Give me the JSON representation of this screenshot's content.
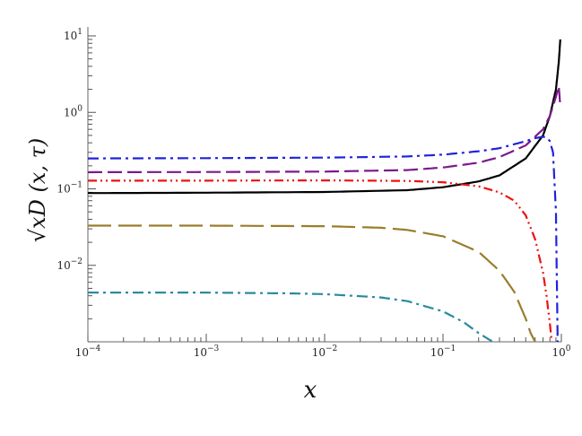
{
  "chart_data": {
    "type": "line",
    "title": "",
    "xlabel": "x",
    "ylabel": "√xD (x, τ)",
    "xscale": "log",
    "yscale": "log",
    "xlim": [
      0.0001,
      1
    ],
    "ylim": [
      0.001,
      10
    ],
    "grid": false,
    "legend": "none",
    "x_ticks": [
      {
        "value": 0.0001,
        "base": "10",
        "exp": "−4"
      },
      {
        "value": 0.001,
        "base": "10",
        "exp": "−3"
      },
      {
        "value": 0.01,
        "base": "10",
        "exp": "−2"
      },
      {
        "value": 0.1,
        "base": "10",
        "exp": "−1"
      },
      {
        "value": 1,
        "base": "10",
        "exp": "0"
      }
    ],
    "y_ticks": [
      {
        "value": 0.01,
        "base": "10",
        "exp": "−2"
      },
      {
        "value": 0.1,
        "base": "10",
        "exp": "−1"
      },
      {
        "value": 1,
        "base": "10",
        "exp": "0"
      },
      {
        "value": 10,
        "base": "10",
        "exp": "1"
      }
    ],
    "series": [
      {
        "color": "#000000",
        "dash": "solid",
        "x": [
          0.0001,
          0.001,
          0.01,
          0.05,
          0.1,
          0.2,
          0.3,
          0.5,
          0.7,
          0.8,
          0.9,
          0.95,
          0.98
        ],
        "y": [
          0.088,
          0.089,
          0.091,
          0.096,
          0.105,
          0.125,
          0.15,
          0.25,
          0.5,
          0.9,
          2.0,
          4.5,
          9.0
        ]
      },
      {
        "color": "#7b1a8a",
        "dash": "long-dash",
        "x": [
          0.0001,
          0.001,
          0.01,
          0.05,
          0.1,
          0.2,
          0.3,
          0.5,
          0.7,
          0.8,
          0.9,
          0.95,
          0.98
        ],
        "y": [
          0.165,
          0.166,
          0.168,
          0.176,
          0.19,
          0.22,
          0.26,
          0.37,
          0.6,
          0.9,
          1.6,
          2.2,
          1.2
        ]
      },
      {
        "color": "#2222dd",
        "dash": "dash-dot",
        "x": [
          0.0001,
          0.001,
          0.01,
          0.05,
          0.1,
          0.2,
          0.3,
          0.5,
          0.6,
          0.7,
          0.75,
          0.8,
          0.85,
          0.9,
          0.93
        ],
        "y": [
          0.25,
          0.252,
          0.256,
          0.265,
          0.28,
          0.31,
          0.34,
          0.42,
          0.46,
          0.48,
          0.47,
          0.42,
          0.3,
          0.05,
          0.001
        ]
      },
      {
        "color": "#ee1111",
        "dash": "dash-dot-dot",
        "x": [
          0.0001,
          0.001,
          0.01,
          0.05,
          0.1,
          0.2,
          0.3,
          0.4,
          0.5,
          0.6,
          0.7,
          0.75,
          0.8,
          0.83
        ],
        "y": [
          0.128,
          0.128,
          0.129,
          0.127,
          0.122,
          0.108,
          0.09,
          0.07,
          0.045,
          0.022,
          0.008,
          0.004,
          0.0017,
          0.001
        ]
      },
      {
        "color": "#9a7d2c",
        "dash": "very-long-dash",
        "x": [
          0.0001,
          0.001,
          0.01,
          0.03,
          0.05,
          0.1,
          0.2,
          0.3,
          0.4,
          0.5,
          0.55,
          0.6
        ],
        "y": [
          0.033,
          0.033,
          0.0325,
          0.031,
          0.029,
          0.024,
          0.015,
          0.0085,
          0.0045,
          0.002,
          0.0013,
          0.001
        ]
      },
      {
        "color": "#2a8aa0",
        "dash": "dash-dot",
        "x": [
          0.0001,
          0.001,
          0.005,
          0.01,
          0.03,
          0.05,
          0.1,
          0.15,
          0.2,
          0.25,
          0.27
        ],
        "y": [
          0.0044,
          0.0044,
          0.0043,
          0.0042,
          0.0038,
          0.0034,
          0.0025,
          0.0018,
          0.0013,
          0.00105,
          0.001
        ]
      }
    ]
  }
}
